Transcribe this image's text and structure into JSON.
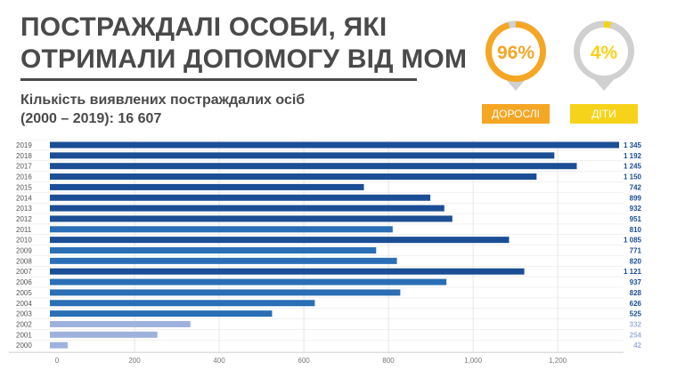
{
  "header": {
    "title_line1": "ПОСТРАЖДАЛІ ОСОБИ, ЯКІ",
    "title_line2": "ОТРИМАЛИ ДОПОМОГУ ВІД МОМ",
    "subtitle_line1": "Кількість виявлених постраждалих осіб",
    "subtitle_line2": "(2000 – 2019): 16 607"
  },
  "shares": {
    "adults": {
      "value": 96,
      "text": "96%",
      "label": "ДОРОСЛІ",
      "color": "#f5a623"
    },
    "children": {
      "value": 4,
      "text": "4%",
      "label": "ДІТИ",
      "color": "#f6d31a"
    }
  },
  "chart_data": {
    "type": "bar",
    "orientation": "horizontal",
    "categories": [
      "2019",
      "2018",
      "2017",
      "2016",
      "2015",
      "2014",
      "2013",
      "2012",
      "2011",
      "2010",
      "2009",
      "2008",
      "2007",
      "2006",
      "2005",
      "2004",
      "2003",
      "2002",
      "2001",
      "2000"
    ],
    "values": [
      1345,
      1192,
      1245,
      1150,
      742,
      899,
      932,
      951,
      810,
      1085,
      771,
      820,
      1121,
      937,
      828,
      626,
      525,
      332,
      254,
      42
    ],
    "value_labels": [
      "1 345",
      "1 192",
      "1 245",
      "1 150",
      "742",
      "899",
      "932",
      "951",
      "810",
      "1 085",
      "771",
      "820",
      "1 121",
      "937",
      "828",
      "626",
      "525",
      "332",
      "254",
      "42"
    ],
    "x_ticks": [
      0,
      200,
      400,
      600,
      800,
      1000,
      1200
    ],
    "x_tick_labels": [
      "0",
      "200",
      "400",
      "600",
      "800",
      "1,000",
      "1,200"
    ],
    "xlim": [
      0,
      1345
    ],
    "grid": true,
    "colors": {
      "dark": "#1b4e95",
      "mid": "#2a6fb5",
      "light": "#9fb2dd"
    },
    "bar_shade": [
      "dark",
      "dark",
      "dark",
      "dark",
      "dark",
      "dark",
      "dark",
      "dark",
      "mid",
      "dark",
      "mid",
      "mid",
      "dark",
      "mid",
      "mid",
      "mid",
      "mid",
      "light",
      "light",
      "light"
    ]
  }
}
